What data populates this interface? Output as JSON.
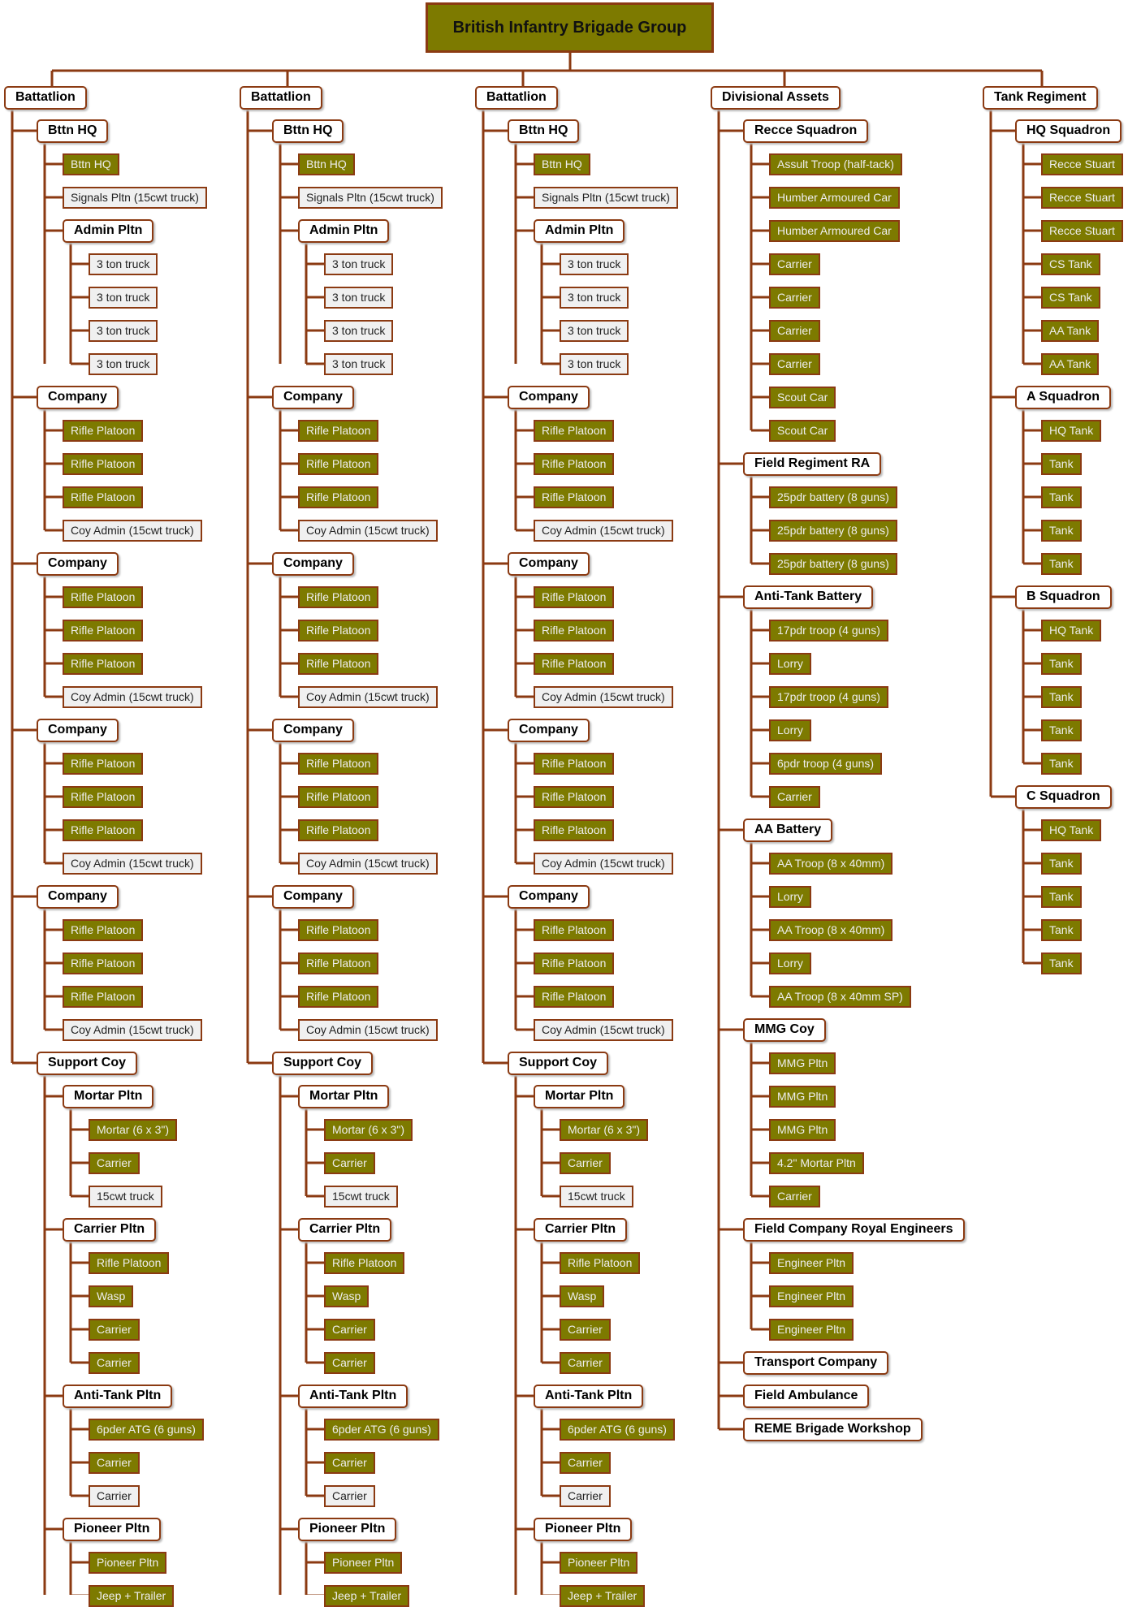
{
  "title": "British Infantry Brigade Group",
  "colors": {
    "line": "#8b3a12",
    "olive": "#7d7a00",
    "white": "#f0f0f0"
  },
  "battalion": {
    "label": "Battatlion",
    "children": [
      {
        "label": "Bttn HQ",
        "style": "lbl",
        "children": [
          {
            "label": "Bttn HQ",
            "style": "olive"
          },
          {
            "label": "Signals Pltn (15cwt truck)",
            "style": "white"
          },
          {
            "label": "Admin Pltn",
            "style": "lbl",
            "children": [
              {
                "label": "3 ton truck",
                "style": "white"
              },
              {
                "label": "3 ton truck",
                "style": "white"
              },
              {
                "label": "3 ton truck",
                "style": "white"
              },
              {
                "label": "3 ton truck",
                "style": "white"
              }
            ]
          }
        ]
      },
      {
        "label": "Company",
        "style": "lbl",
        "children": [
          {
            "label": "Rifle Platoon",
            "style": "olive"
          },
          {
            "label": "Rifle Platoon",
            "style": "olive"
          },
          {
            "label": "Rifle Platoon",
            "style": "olive"
          },
          {
            "label": "Coy Admin (15cwt truck)",
            "style": "white"
          }
        ]
      },
      {
        "label": "Company",
        "style": "lbl",
        "children": [
          {
            "label": "Rifle Platoon",
            "style": "olive"
          },
          {
            "label": "Rifle Platoon",
            "style": "olive"
          },
          {
            "label": "Rifle Platoon",
            "style": "olive"
          },
          {
            "label": "Coy Admin (15cwt truck)",
            "style": "white"
          }
        ]
      },
      {
        "label": "Company",
        "style": "lbl",
        "children": [
          {
            "label": "Rifle Platoon",
            "style": "olive"
          },
          {
            "label": "Rifle Platoon",
            "style": "olive"
          },
          {
            "label": "Rifle Platoon",
            "style": "olive"
          },
          {
            "label": "Coy Admin (15cwt truck)",
            "style": "white"
          }
        ]
      },
      {
        "label": "Company",
        "style": "lbl",
        "children": [
          {
            "label": "Rifle Platoon",
            "style": "olive"
          },
          {
            "label": "Rifle Platoon",
            "style": "olive"
          },
          {
            "label": "Rifle Platoon",
            "style": "olive"
          },
          {
            "label": "Coy Admin (15cwt truck)",
            "style": "white"
          }
        ]
      },
      {
        "label": "Support Coy",
        "style": "lbl",
        "children": [
          {
            "label": "Mortar Pltn",
            "style": "lbl",
            "children": [
              {
                "label": "Mortar (6 x 3\")",
                "style": "olive"
              },
              {
                "label": "Carrier",
                "style": "olive"
              },
              {
                "label": "15cwt truck",
                "style": "white"
              }
            ]
          },
          {
            "label": "Carrier Pltn",
            "style": "lbl",
            "children": [
              {
                "label": "Rifle Platoon",
                "style": "olive"
              },
              {
                "label": "Wasp",
                "style": "olive"
              },
              {
                "label": "Carrier",
                "style": "olive"
              },
              {
                "label": "Carrier",
                "style": "olive"
              }
            ]
          },
          {
            "label": "Anti-Tank Pltn",
            "style": "lbl",
            "children": [
              {
                "label": "6pder ATG (6 guns)",
                "style": "olive"
              },
              {
                "label": "Carrier",
                "style": "olive"
              },
              {
                "label": "Carrier",
                "style": "white"
              }
            ]
          },
          {
            "label": "Pioneer Pltn",
            "style": "lbl",
            "children": [
              {
                "label": "Pioneer Pltn",
                "style": "olive"
              },
              {
                "label": "Jeep + Trailer",
                "style": "olive"
              }
            ]
          }
        ]
      }
    ]
  },
  "divisional": {
    "label": "Divisional Assets",
    "children": [
      {
        "label": "Recce Squadron",
        "style": "lbl",
        "children": [
          {
            "label": "Assult Troop (half-tack)",
            "style": "olive"
          },
          {
            "label": "Humber Armoured Car",
            "style": "olive"
          },
          {
            "label": "Humber Armoured Car",
            "style": "olive"
          },
          {
            "label": "Carrier",
            "style": "olive"
          },
          {
            "label": "Carrier",
            "style": "olive"
          },
          {
            "label": "Carrier",
            "style": "olive"
          },
          {
            "label": "Carrier",
            "style": "olive"
          },
          {
            "label": "Scout Car",
            "style": "olive"
          },
          {
            "label": "Scout Car",
            "style": "olive"
          }
        ]
      },
      {
        "label": "Field Regiment RA",
        "style": "lbl",
        "children": [
          {
            "label": "25pdr battery (8 guns)",
            "style": "olive"
          },
          {
            "label": "25pdr battery (8 guns)",
            "style": "olive"
          },
          {
            "label": "25pdr battery (8 guns)",
            "style": "olive"
          }
        ]
      },
      {
        "label": "Anti-Tank Battery",
        "style": "lbl",
        "children": [
          {
            "label": "17pdr troop (4 guns)",
            "style": "olive"
          },
          {
            "label": "Lorry",
            "style": "olive"
          },
          {
            "label": "17pdr troop (4 guns)",
            "style": "olive"
          },
          {
            "label": "Lorry",
            "style": "olive"
          },
          {
            "label": "6pdr troop (4 guns)",
            "style": "olive"
          },
          {
            "label": "Carrier",
            "style": "olive"
          }
        ]
      },
      {
        "label": "AA Battery",
        "style": "lbl",
        "children": [
          {
            "label": "AA Troop (8 x 40mm)",
            "style": "olive"
          },
          {
            "label": "Lorry",
            "style": "olive"
          },
          {
            "label": "AA Troop (8 x 40mm)",
            "style": "olive"
          },
          {
            "label": "Lorry",
            "style": "olive"
          },
          {
            "label": "AA Troop (8 x 40mm SP)",
            "style": "olive"
          }
        ]
      },
      {
        "label": "MMG Coy",
        "style": "lbl",
        "children": [
          {
            "label": "MMG Pltn",
            "style": "olive"
          },
          {
            "label": "MMG Pltn",
            "style": "olive"
          },
          {
            "label": "MMG Pltn",
            "style": "olive"
          },
          {
            "label": "4.2\" Mortar Pltn",
            "style": "olive"
          },
          {
            "label": "Carrier",
            "style": "olive"
          }
        ]
      },
      {
        "label": "Field Company Royal Engineers",
        "style": "lbl",
        "children": [
          {
            "label": "Engineer Pltn",
            "style": "olive"
          },
          {
            "label": "Engineer Pltn",
            "style": "olive"
          },
          {
            "label": "Engineer Pltn",
            "style": "olive"
          }
        ]
      },
      {
        "label": "Transport Company",
        "style": "lbl"
      },
      {
        "label": "Field Ambulance",
        "style": "lbl"
      },
      {
        "label": "REME Brigade Workshop",
        "style": "lbl"
      }
    ]
  },
  "tank": {
    "label": "Tank Regiment",
    "children": [
      {
        "label": "HQ Squadron",
        "style": "lbl",
        "children": [
          {
            "label": "Recce Stuart",
            "style": "olive"
          },
          {
            "label": "Recce Stuart",
            "style": "olive"
          },
          {
            "label": "Recce Stuart",
            "style": "olive"
          },
          {
            "label": "CS Tank",
            "style": "olive"
          },
          {
            "label": "CS Tank",
            "style": "olive"
          },
          {
            "label": "AA Tank",
            "style": "olive"
          },
          {
            "label": "AA Tank",
            "style": "olive"
          }
        ]
      },
      {
        "label": "A Squadron",
        "style": "lbl",
        "children": [
          {
            "label": "HQ Tank",
            "style": "olive"
          },
          {
            "label": "Tank",
            "style": "olive"
          },
          {
            "label": "Tank",
            "style": "olive"
          },
          {
            "label": "Tank",
            "style": "olive"
          },
          {
            "label": "Tank",
            "style": "olive"
          }
        ]
      },
      {
        "label": "B Squadron",
        "style": "lbl",
        "children": [
          {
            "label": "HQ Tank",
            "style": "olive"
          },
          {
            "label": "Tank",
            "style": "olive"
          },
          {
            "label": "Tank",
            "style": "olive"
          },
          {
            "label": "Tank",
            "style": "olive"
          },
          {
            "label": "Tank",
            "style": "olive"
          }
        ]
      },
      {
        "label": "C Squadron",
        "style": "lbl",
        "children": [
          {
            "label": "HQ Tank",
            "style": "olive"
          },
          {
            "label": "Tank",
            "style": "olive"
          },
          {
            "label": "Tank",
            "style": "olive"
          },
          {
            "label": "Tank",
            "style": "olive"
          },
          {
            "label": "Tank",
            "style": "olive"
          }
        ]
      }
    ]
  }
}
